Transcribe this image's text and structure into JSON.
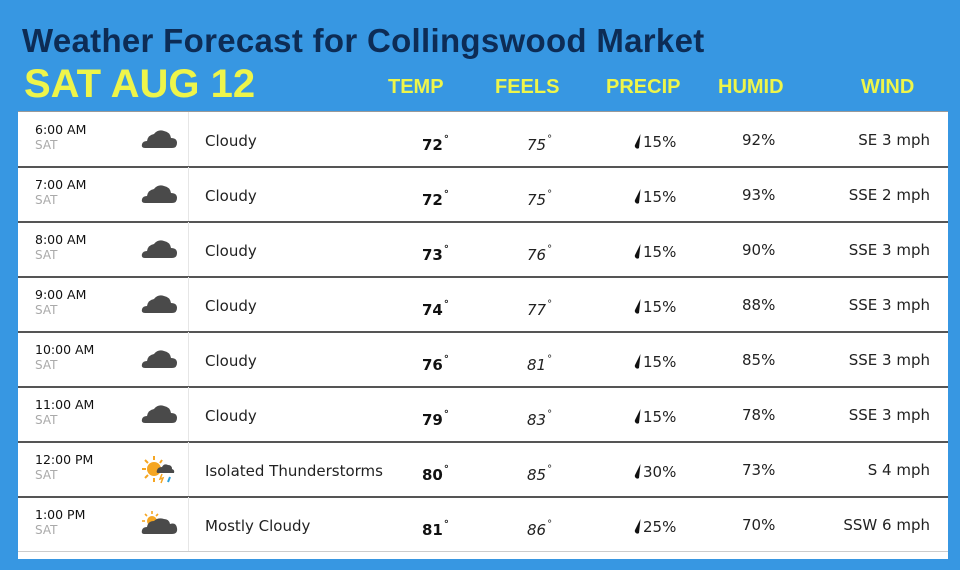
{
  "header": {
    "title": "Weather Forecast for Collingswood Market",
    "date": "SAT AUG 12",
    "columns": [
      "TEMP",
      "FEELS",
      "PRECIP",
      "HUMID",
      "WIND"
    ]
  },
  "colors": {
    "background": "#3797e2",
    "title": "#0d2c55",
    "accent_yellow": "#eef54a",
    "icon_gray": "#4a4a4a",
    "sun_orange": "#f5a623"
  },
  "rows": [
    {
      "time": "6:00 AM",
      "day": "SAT",
      "icon": "cloudy-icon",
      "condition": "Cloudy",
      "temp": "72",
      "feels": "75",
      "precip": "15%",
      "humid": "92%",
      "wind": "SE 3 mph"
    },
    {
      "time": "7:00 AM",
      "day": "SAT",
      "icon": "cloudy-icon",
      "condition": "Cloudy",
      "temp": "72",
      "feels": "75",
      "precip": "15%",
      "humid": "93%",
      "wind": "SSE 2 mph"
    },
    {
      "time": "8:00 AM",
      "day": "SAT",
      "icon": "cloudy-icon",
      "condition": "Cloudy",
      "temp": "73",
      "feels": "76",
      "precip": "15%",
      "humid": "90%",
      "wind": "SSE 3 mph"
    },
    {
      "time": "9:00 AM",
      "day": "SAT",
      "icon": "cloudy-icon",
      "condition": "Cloudy",
      "temp": "74",
      "feels": "77",
      "precip": "15%",
      "humid": "88%",
      "wind": "SSE 3 mph"
    },
    {
      "time": "10:00 AM",
      "day": "SAT",
      "icon": "cloudy-icon",
      "condition": "Cloudy",
      "temp": "76",
      "feels": "81",
      "precip": "15%",
      "humid": "85%",
      "wind": "SSE 3 mph"
    },
    {
      "time": "11:00 AM",
      "day": "SAT",
      "icon": "cloudy-icon",
      "condition": "Cloudy",
      "temp": "79",
      "feels": "83",
      "precip": "15%",
      "humid": "78%",
      "wind": "SSE 3 mph"
    },
    {
      "time": "12:00 PM",
      "day": "SAT",
      "icon": "thunderstorm-icon",
      "condition": "Isolated Thunderstorms",
      "temp": "80",
      "feels": "85",
      "precip": "30%",
      "humid": "73%",
      "wind": "S 4 mph"
    },
    {
      "time": "1:00 PM",
      "day": "SAT",
      "icon": "mostly-cloudy-icon",
      "condition": "Mostly Cloudy",
      "temp": "81",
      "feels": "86",
      "precip": "25%",
      "humid": "70%",
      "wind": "SSW 6 mph"
    }
  ],
  "degree_symbol": "°"
}
